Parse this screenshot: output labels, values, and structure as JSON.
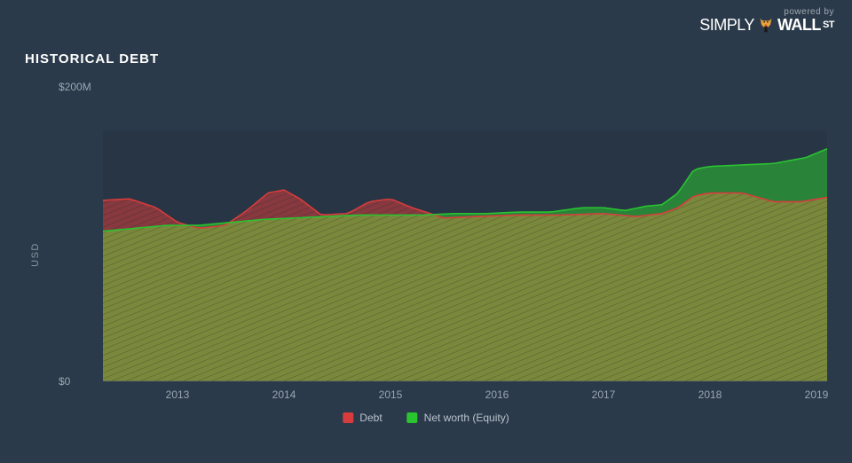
{
  "branding": {
    "powered_by": "powered by",
    "brand_simply": "SIMPLY",
    "brand_wall": "WALL",
    "brand_st": "ST"
  },
  "title": "HISTORICAL DEBT",
  "chart": {
    "type": "area",
    "background_color": "#2b3a4a",
    "plot_gutter_color": "#212e3d",
    "axis_text_color": "#9aa6b2",
    "title_color": "#ffffff",
    "ylabel": "USD",
    "ylim": [
      0,
      200
    ],
    "yticks": [
      {
        "value": 0,
        "label": "$0"
      },
      {
        "value": 200,
        "label": "$200M"
      }
    ],
    "xlim": [
      2012.3,
      2019.1
    ],
    "xticks": [
      {
        "value": 2013,
        "label": "2013"
      },
      {
        "value": 2014,
        "label": "2014"
      },
      {
        "value": 2015,
        "label": "2015"
      },
      {
        "value": 2016,
        "label": "2016"
      },
      {
        "value": 2017,
        "label": "2017"
      },
      {
        "value": 2018,
        "label": "2018"
      },
      {
        "value": 2019,
        "label": "2019"
      }
    ],
    "legend": [
      {
        "label": "Debt",
        "color": "#d73c3c"
      },
      {
        "label": "Net worth (Equity)",
        "color": "#29c42f"
      }
    ],
    "series": {
      "debt": {
        "stroke": "#d73c3c",
        "fill": "#d73c3c",
        "fill_opacity": 0.55,
        "hatch_color": "#3a2f2a",
        "stroke_width": 1.6,
        "points": [
          [
            2012.3,
            123
          ],
          [
            2012.55,
            124
          ],
          [
            2012.8,
            118
          ],
          [
            2013.0,
            108
          ],
          [
            2013.2,
            104
          ],
          [
            2013.45,
            106
          ],
          [
            2013.65,
            116
          ],
          [
            2013.85,
            128
          ],
          [
            2014.0,
            130
          ],
          [
            2014.15,
            124
          ],
          [
            2014.35,
            113
          ],
          [
            2014.6,
            114
          ],
          [
            2014.8,
            122
          ],
          [
            2015.0,
            124
          ],
          [
            2015.2,
            118
          ],
          [
            2015.5,
            111
          ],
          [
            2015.8,
            112
          ],
          [
            2016.2,
            113
          ],
          [
            2016.6,
            113
          ],
          [
            2017.0,
            114
          ],
          [
            2017.3,
            112
          ],
          [
            2017.55,
            114
          ],
          [
            2017.7,
            118
          ],
          [
            2017.85,
            126
          ],
          [
            2018.0,
            128
          ],
          [
            2018.3,
            128
          ],
          [
            2018.6,
            122
          ],
          [
            2018.85,
            122
          ],
          [
            2019.1,
            125
          ]
        ]
      },
      "equity": {
        "stroke": "#29c42f",
        "fill": "#29c42f",
        "fill_opacity": 0.55,
        "hatch_color": "#2e3a2a",
        "stroke_width": 1.6,
        "points": [
          [
            2012.3,
            102
          ],
          [
            2012.6,
            104
          ],
          [
            2012.9,
            106
          ],
          [
            2013.2,
            106
          ],
          [
            2013.5,
            108
          ],
          [
            2013.8,
            110
          ],
          [
            2014.1,
            111
          ],
          [
            2014.4,
            112
          ],
          [
            2014.7,
            113
          ],
          [
            2015.0,
            113
          ],
          [
            2015.3,
            113
          ],
          [
            2015.6,
            114
          ],
          [
            2015.9,
            114
          ],
          [
            2016.2,
            115
          ],
          [
            2016.5,
            115
          ],
          [
            2016.8,
            118
          ],
          [
            2017.0,
            118
          ],
          [
            2017.2,
            116
          ],
          [
            2017.4,
            119
          ],
          [
            2017.55,
            120
          ],
          [
            2017.7,
            128
          ],
          [
            2017.85,
            144
          ],
          [
            2018.0,
            146
          ],
          [
            2018.3,
            147
          ],
          [
            2018.6,
            148
          ],
          [
            2018.9,
            152
          ],
          [
            2019.1,
            158
          ]
        ]
      }
    }
  }
}
